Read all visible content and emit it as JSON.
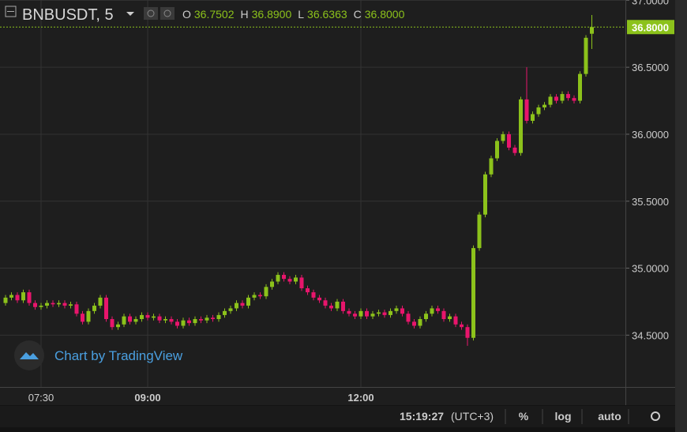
{
  "header": {
    "symbol": "BNBUSDT, 5",
    "ohlc": [
      {
        "label": "O",
        "value": "36.7502"
      },
      {
        "label": "H",
        "value": "36.8900"
      },
      {
        "label": "L",
        "value": "36.6363"
      },
      {
        "label": "C",
        "value": "36.8000"
      }
    ]
  },
  "watermark": "Chart by TradingView",
  "toolbar": {
    "time": "15:19:27",
    "timezone": "(UTC+3)",
    "buttons": [
      "%",
      "log",
      "auto"
    ]
  },
  "chart_data": {
    "type": "candlestick",
    "log_scale": false,
    "grid": true,
    "up_color": "#8cc21b",
    "down_color": "#e8156c",
    "categories": [
      null,
      null,
      null,
      null,
      null,
      null,
      "07:30",
      null,
      null,
      null,
      null,
      null,
      null,
      null,
      null,
      null,
      null,
      null,
      null,
      null,
      null,
      null,
      null,
      null,
      "09:00",
      null,
      null,
      null,
      null,
      null,
      null,
      null,
      null,
      null,
      null,
      null,
      null,
      null,
      null,
      null,
      null,
      null,
      null,
      null,
      null,
      null,
      null,
      null,
      null,
      null,
      null,
      null,
      null,
      null,
      null,
      null,
      null,
      null,
      null,
      null,
      "12:00",
      null,
      null,
      null,
      null,
      null,
      null,
      null,
      null,
      null,
      null,
      null,
      null,
      null,
      null,
      null,
      null,
      null,
      null,
      null,
      null,
      null,
      null,
      null,
      null,
      null,
      null,
      null,
      null,
      null,
      null,
      null,
      null,
      null,
      null,
      null,
      null,
      null,
      null,
      null
    ],
    "open": [
      34.74,
      34.78,
      34.8,
      34.76,
      34.82,
      34.74,
      34.71,
      34.72,
      34.74,
      34.73,
      34.74,
      34.72,
      34.73,
      34.66,
      34.6,
      34.68,
      34.72,
      34.78,
      34.62,
      34.56,
      34.58,
      34.64,
      34.6,
      34.62,
      34.65,
      34.63,
      34.64,
      34.61,
      34.62,
      34.6,
      34.57,
      34.61,
      34.59,
      34.62,
      34.61,
      34.63,
      34.62,
      34.65,
      34.68,
      34.7,
      34.74,
      34.72,
      34.78,
      34.8,
      34.79,
      34.86,
      34.9,
      34.95,
      34.92,
      34.9,
      34.93,
      34.85,
      34.82,
      34.78,
      34.76,
      34.72,
      34.7,
      34.75,
      34.68,
      34.66,
      34.64,
      34.68,
      34.64,
      34.66,
      34.67,
      34.65,
      34.68,
      34.7,
      34.66,
      34.6,
      34.57,
      34.62,
      34.66,
      34.7,
      34.68,
      34.62,
      34.64,
      34.58,
      34.56,
      34.48,
      35.15,
      35.4,
      35.7,
      35.82,
      35.95,
      36.0,
      35.9,
      35.86,
      36.26,
      36.1,
      36.15,
      36.2,
      36.22,
      36.28,
      36.25,
      36.3,
      36.27,
      36.25,
      36.45,
      36.7502
    ],
    "high": [
      34.8,
      34.82,
      34.82,
      34.84,
      34.84,
      34.76,
      34.74,
      34.76,
      34.76,
      34.76,
      34.76,
      34.75,
      34.75,
      34.68,
      34.7,
      34.74,
      34.8,
      34.8,
      34.64,
      34.6,
      34.66,
      34.66,
      34.64,
      34.67,
      34.67,
      34.66,
      34.66,
      34.64,
      34.64,
      34.62,
      34.63,
      34.63,
      34.64,
      34.64,
      34.65,
      34.65,
      34.67,
      34.7,
      34.72,
      34.76,
      34.76,
      34.8,
      34.82,
      34.82,
      34.88,
      34.92,
      34.97,
      34.97,
      34.94,
      34.95,
      34.95,
      34.87,
      34.84,
      34.8,
      34.78,
      34.74,
      34.77,
      34.77,
      34.7,
      34.68,
      34.7,
      34.7,
      34.68,
      34.69,
      34.69,
      34.7,
      34.72,
      34.72,
      34.68,
      34.62,
      34.64,
      34.68,
      34.72,
      34.72,
      34.7,
      34.66,
      34.66,
      34.6,
      34.58,
      35.17,
      35.42,
      35.72,
      35.84,
      35.97,
      36.02,
      36.02,
      35.92,
      36.28,
      36.5,
      36.17,
      36.22,
      36.24,
      36.3,
      36.3,
      36.32,
      36.32,
      36.29,
      36.47,
      36.74,
      36.89
    ],
    "low": [
      34.72,
      34.76,
      34.74,
      34.74,
      34.72,
      34.69,
      34.69,
      34.7,
      34.71,
      34.71,
      34.7,
      34.7,
      34.64,
      34.58,
      34.58,
      34.66,
      34.7,
      34.6,
      34.54,
      34.54,
      34.56,
      34.58,
      34.58,
      34.6,
      34.61,
      34.61,
      34.59,
      34.59,
      34.58,
      34.55,
      34.55,
      34.57,
      34.57,
      34.59,
      34.59,
      34.6,
      34.6,
      34.63,
      34.66,
      34.68,
      34.7,
      34.7,
      34.76,
      34.77,
      34.77,
      34.84,
      34.88,
      34.9,
      34.88,
      34.88,
      34.83,
      34.8,
      34.76,
      34.74,
      34.7,
      34.68,
      34.68,
      34.66,
      34.64,
      34.62,
      34.62,
      34.62,
      34.62,
      34.64,
      34.63,
      34.63,
      34.66,
      34.64,
      34.58,
      34.55,
      34.55,
      34.6,
      34.64,
      34.66,
      34.6,
      34.6,
      34.56,
      34.54,
      34.42,
      34.46,
      35.13,
      35.38,
      35.68,
      35.8,
      35.93,
      35.88,
      35.84,
      35.84,
      36.08,
      36.08,
      36.13,
      36.18,
      36.2,
      36.23,
      36.23,
      36.25,
      36.23,
      36.23,
      36.43,
      36.6363
    ],
    "close": [
      34.78,
      34.8,
      34.76,
      34.82,
      34.74,
      34.71,
      34.72,
      34.74,
      34.73,
      34.74,
      34.72,
      34.73,
      34.66,
      34.6,
      34.68,
      34.72,
      34.78,
      34.62,
      34.56,
      34.58,
      34.64,
      34.6,
      34.62,
      34.65,
      34.63,
      34.64,
      34.61,
      34.62,
      34.6,
      34.57,
      34.61,
      34.59,
      34.62,
      34.61,
      34.63,
      34.62,
      34.65,
      34.68,
      34.7,
      34.74,
      34.72,
      34.78,
      34.8,
      34.79,
      34.86,
      34.9,
      34.95,
      34.92,
      34.9,
      34.93,
      34.85,
      34.82,
      34.78,
      34.76,
      34.72,
      34.7,
      34.75,
      34.68,
      34.66,
      34.64,
      34.68,
      34.64,
      34.66,
      34.67,
      34.65,
      34.68,
      34.7,
      34.66,
      34.6,
      34.57,
      34.62,
      34.66,
      34.7,
      34.68,
      34.62,
      34.64,
      34.58,
      34.56,
      34.48,
      35.15,
      35.4,
      35.7,
      35.82,
      35.95,
      36.0,
      35.9,
      35.86,
      36.26,
      36.1,
      36.15,
      36.2,
      36.22,
      36.28,
      36.25,
      36.3,
      36.27,
      36.25,
      36.45,
      36.72,
      36.8
    ],
    "ylim": [
      34.113,
      37.002
    ],
    "yticks": [
      {
        "value": 34.5,
        "label": "34.5000"
      },
      {
        "value": 35,
        "label": "35.0000"
      },
      {
        "value": 35.5,
        "label": "35.5000"
      },
      {
        "value": 36,
        "label": "36.0000"
      },
      {
        "value": 36.5,
        "label": "36.5000"
      },
      {
        "value": 37,
        "label": "37.0000"
      }
    ],
    "last_price": {
      "value": 36.8,
      "label": "36.8000"
    }
  }
}
